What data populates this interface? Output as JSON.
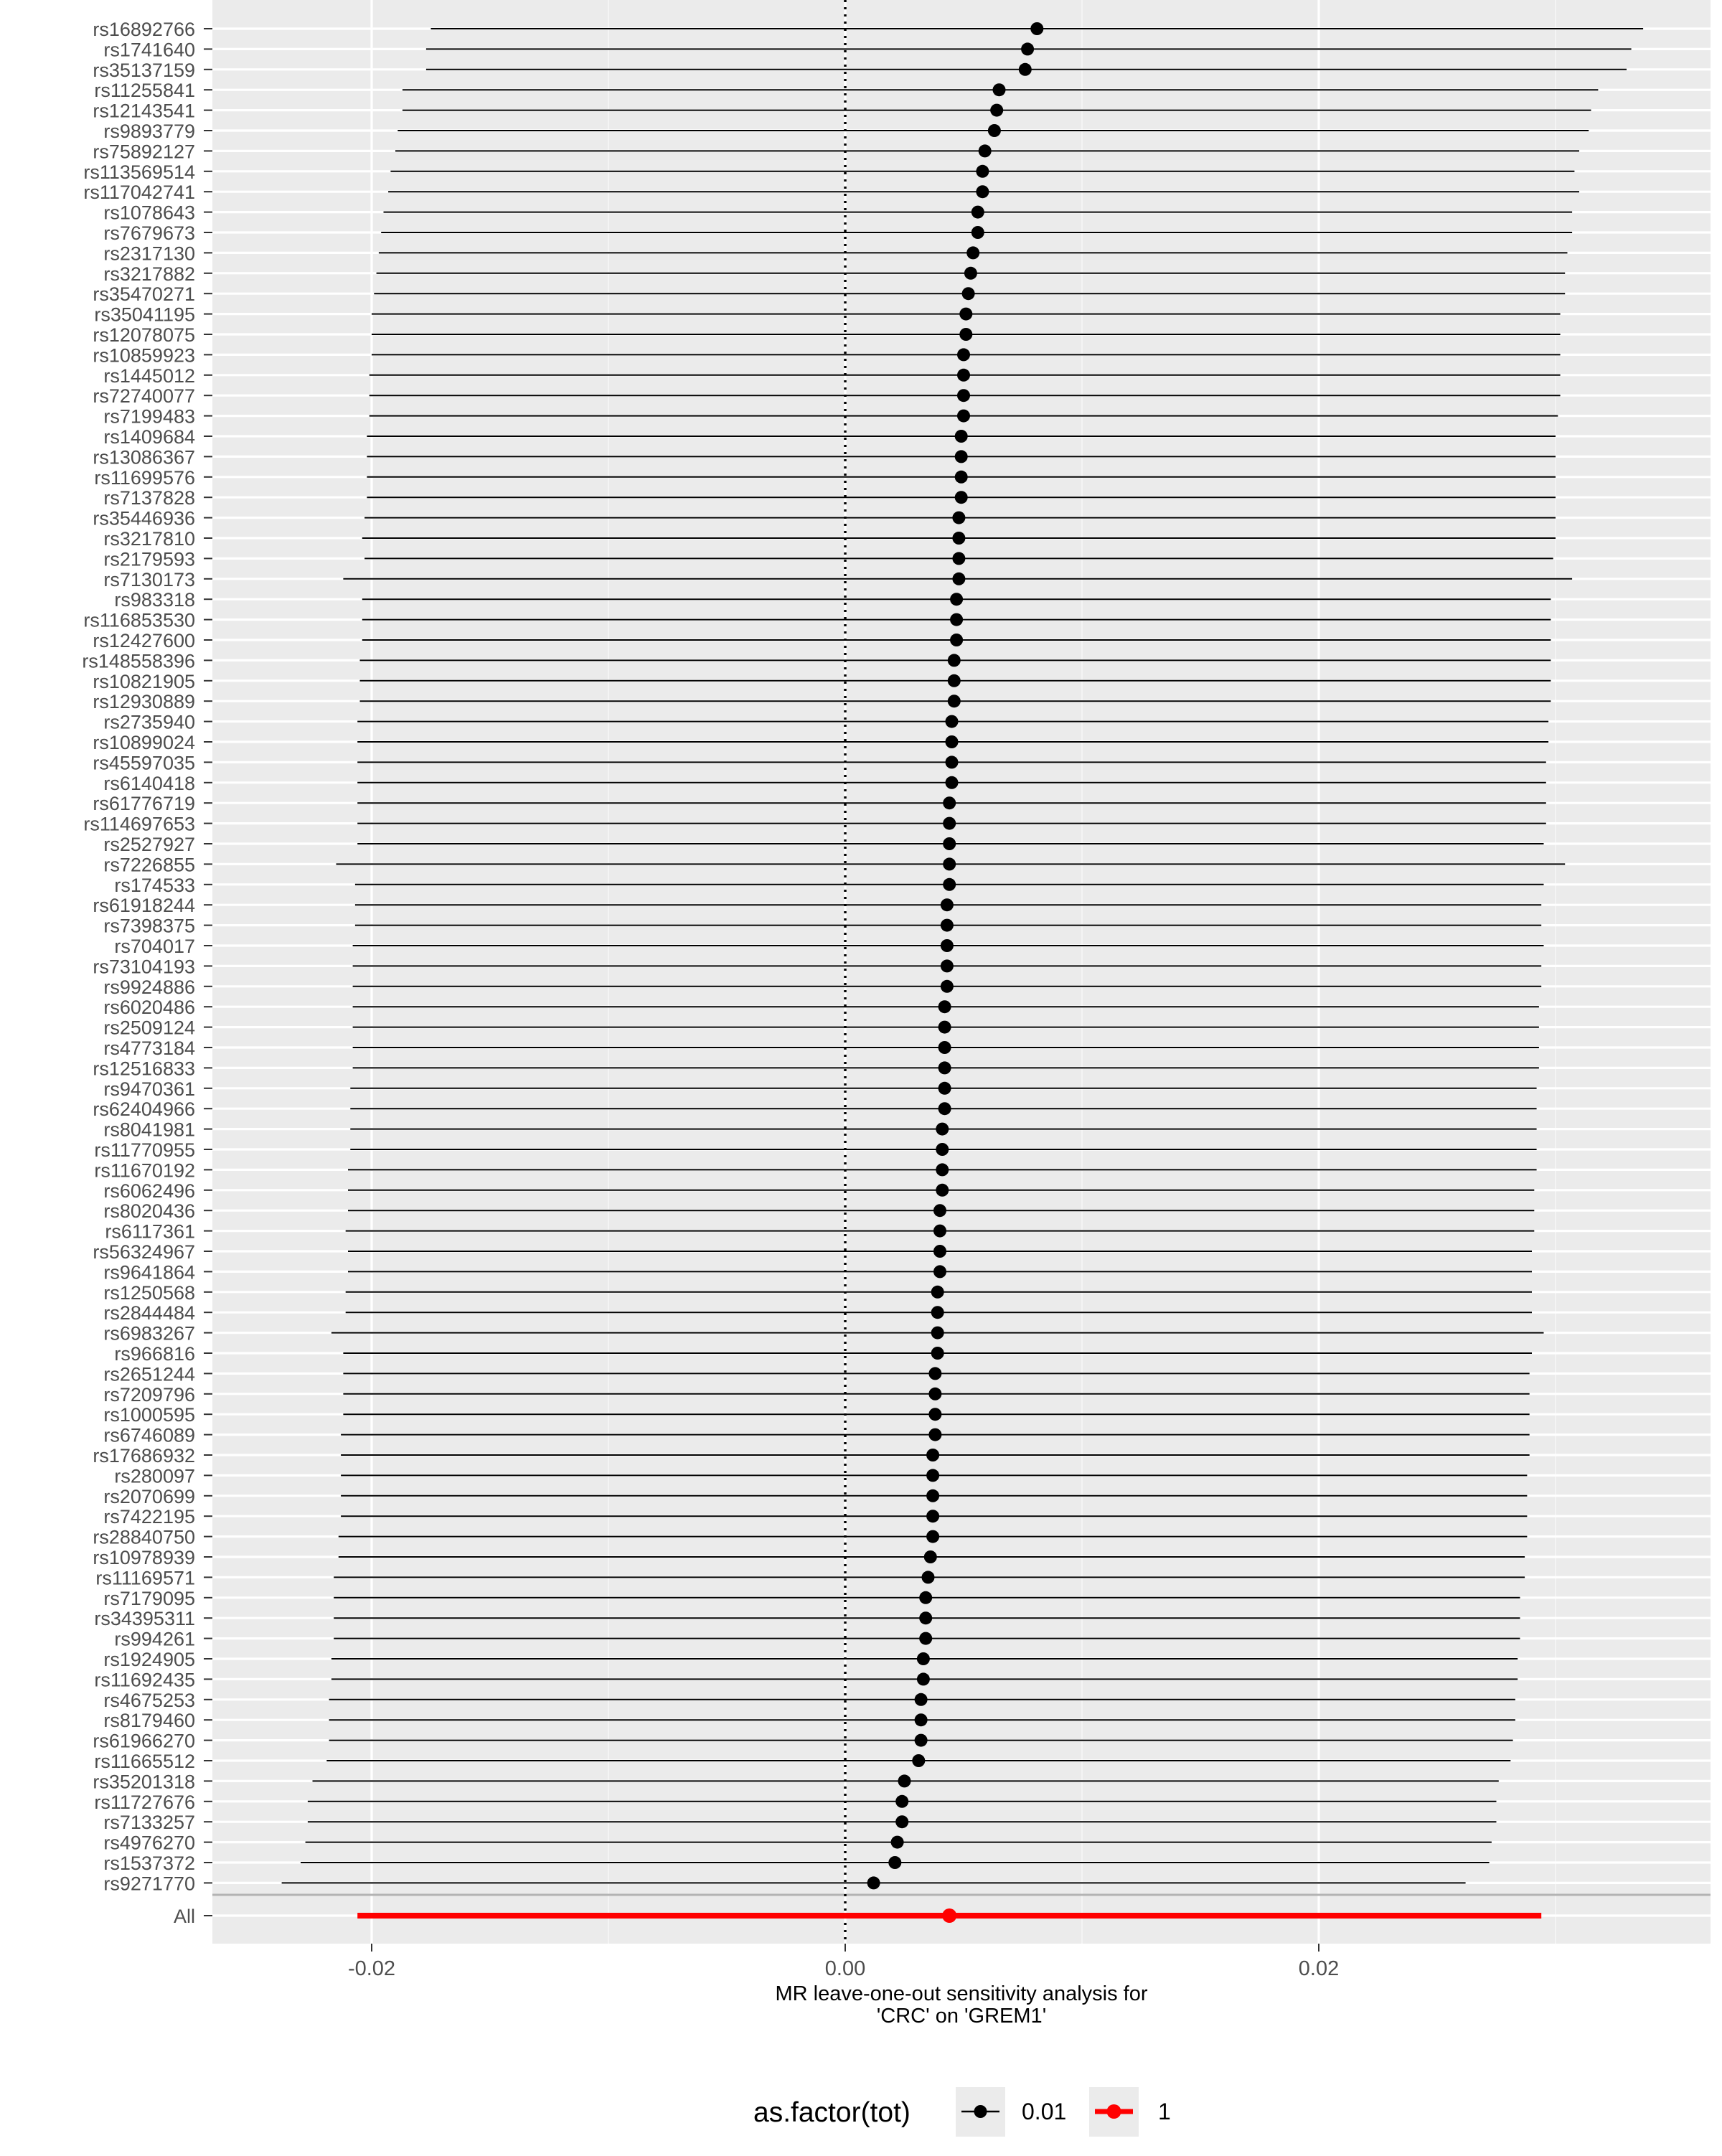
{
  "chart_data": {
    "type": "forest",
    "xlabel_lines": [
      "MR leave-one-out sensitivity analysis for",
      "'CRC' on 'GREM1'"
    ],
    "x_ticks": [
      -0.02,
      0.0,
      0.02
    ],
    "x_tick_labels": [
      "-0.02",
      "0.00",
      "0.02"
    ],
    "xlim": [
      -0.027,
      0.0365
    ],
    "reference_line": 0,
    "grid": true,
    "legend": {
      "position": "bottom",
      "title": "as.factor(tot)",
      "items": [
        {
          "label": "0.01",
          "color": "#000000"
        },
        {
          "label": "1",
          "color": "#ff0000"
        }
      ]
    },
    "snps": [
      {
        "label": "rs16892766",
        "b": 0.0081,
        "lo": -0.0175,
        "hi": 0.0337
      },
      {
        "label": "rs1741640",
        "b": 0.0077,
        "lo": -0.0177,
        "hi": 0.0332
      },
      {
        "label": "rs35137159",
        "b": 0.0076,
        "lo": -0.0177,
        "hi": 0.033
      },
      {
        "label": "rs11255841",
        "b": 0.0065,
        "lo": -0.0187,
        "hi": 0.0318
      },
      {
        "label": "rs12143541",
        "b": 0.0064,
        "lo": -0.0187,
        "hi": 0.0315
      },
      {
        "label": "rs9893779",
        "b": 0.0063,
        "lo": -0.0189,
        "hi": 0.0314
      },
      {
        "label": "rs75892127",
        "b": 0.0059,
        "lo": -0.019,
        "hi": 0.031
      },
      {
        "label": "rs113569514",
        "b": 0.0058,
        "lo": -0.0192,
        "hi": 0.0308
      },
      {
        "label": "rs117042741",
        "b": 0.0058,
        "lo": -0.0193,
        "hi": 0.031
      },
      {
        "label": "rs1078643",
        "b": 0.0056,
        "lo": -0.0195,
        "hi": 0.0307
      },
      {
        "label": "rs7679673",
        "b": 0.0056,
        "lo": -0.0196,
        "hi": 0.0307
      },
      {
        "label": "rs2317130",
        "b": 0.0054,
        "lo": -0.0197,
        "hi": 0.0305
      },
      {
        "label": "rs3217882",
        "b": 0.0053,
        "lo": -0.0198,
        "hi": 0.0304
      },
      {
        "label": "rs35470271",
        "b": 0.0052,
        "lo": -0.0199,
        "hi": 0.0304
      },
      {
        "label": "rs35041195",
        "b": 0.0051,
        "lo": -0.02,
        "hi": 0.0302
      },
      {
        "label": "rs12078075",
        "b": 0.0051,
        "lo": -0.02,
        "hi": 0.0302
      },
      {
        "label": "rs10859923",
        "b": 0.005,
        "lo": -0.02,
        "hi": 0.0302
      },
      {
        "label": "rs1445012",
        "b": 0.005,
        "lo": -0.0201,
        "hi": 0.0302
      },
      {
        "label": "rs72740077",
        "b": 0.005,
        "lo": -0.0201,
        "hi": 0.0302
      },
      {
        "label": "rs7199483",
        "b": 0.005,
        "lo": -0.0201,
        "hi": 0.0301
      },
      {
        "label": "rs1409684",
        "b": 0.0049,
        "lo": -0.0202,
        "hi": 0.03
      },
      {
        "label": "rs13086367",
        "b": 0.0049,
        "lo": -0.0202,
        "hi": 0.03
      },
      {
        "label": "rs11699576",
        "b": 0.0049,
        "lo": -0.0202,
        "hi": 0.03
      },
      {
        "label": "rs7137828",
        "b": 0.0049,
        "lo": -0.0202,
        "hi": 0.03
      },
      {
        "label": "rs35446936",
        "b": 0.0048,
        "lo": -0.0203,
        "hi": 0.03
      },
      {
        "label": "rs3217810",
        "b": 0.0048,
        "lo": -0.0204,
        "hi": 0.03
      },
      {
        "label": "rs2179593",
        "b": 0.0048,
        "lo": -0.0203,
        "hi": 0.0299
      },
      {
        "label": "rs7130173",
        "b": 0.0048,
        "lo": -0.0212,
        "hi": 0.0307
      },
      {
        "label": "rs983318",
        "b": 0.0047,
        "lo": -0.0204,
        "hi": 0.0298
      },
      {
        "label": "rs116853530",
        "b": 0.0047,
        "lo": -0.0204,
        "hi": 0.0298
      },
      {
        "label": "rs12427600",
        "b": 0.0047,
        "lo": -0.0204,
        "hi": 0.0298
      },
      {
        "label": "rs148558396",
        "b": 0.0046,
        "lo": -0.0205,
        "hi": 0.0298
      },
      {
        "label": "rs10821905",
        "b": 0.0046,
        "lo": -0.0205,
        "hi": 0.0298
      },
      {
        "label": "rs12930889",
        "b": 0.0046,
        "lo": -0.0205,
        "hi": 0.0298
      },
      {
        "label": "rs2735940",
        "b": 0.0045,
        "lo": -0.0206,
        "hi": 0.0297
      },
      {
        "label": "rs10899024",
        "b": 0.0045,
        "lo": -0.0206,
        "hi": 0.0297
      },
      {
        "label": "rs45597035",
        "b": 0.0045,
        "lo": -0.0206,
        "hi": 0.0296
      },
      {
        "label": "rs6140418",
        "b": 0.0045,
        "lo": -0.0206,
        "hi": 0.0296
      },
      {
        "label": "rs61776719",
        "b": 0.0044,
        "lo": -0.0206,
        "hi": 0.0296
      },
      {
        "label": "rs114697653",
        "b": 0.0044,
        "lo": -0.0206,
        "hi": 0.0296
      },
      {
        "label": "rs2527927",
        "b": 0.0044,
        "lo": -0.0206,
        "hi": 0.0295
      },
      {
        "label": "rs7226855",
        "b": 0.0044,
        "lo": -0.0215,
        "hi": 0.0304
      },
      {
        "label": "rs174533",
        "b": 0.0044,
        "lo": -0.0207,
        "hi": 0.0295
      },
      {
        "label": "rs61918244",
        "b": 0.0043,
        "lo": -0.0207,
        "hi": 0.0294
      },
      {
        "label": "rs7398375",
        "b": 0.0043,
        "lo": -0.0207,
        "hi": 0.0294
      },
      {
        "label": "rs704017",
        "b": 0.0043,
        "lo": -0.0208,
        "hi": 0.0295
      },
      {
        "label": "rs73104193",
        "b": 0.0043,
        "lo": -0.0208,
        "hi": 0.0294
      },
      {
        "label": "rs9924886",
        "b": 0.0043,
        "lo": -0.0208,
        "hi": 0.0294
      },
      {
        "label": "rs6020486",
        "b": 0.0042,
        "lo": -0.0208,
        "hi": 0.0293
      },
      {
        "label": "rs2509124",
        "b": 0.0042,
        "lo": -0.0208,
        "hi": 0.0293
      },
      {
        "label": "rs4773184",
        "b": 0.0042,
        "lo": -0.0208,
        "hi": 0.0293
      },
      {
        "label": "rs12516833",
        "b": 0.0042,
        "lo": -0.0208,
        "hi": 0.0293
      },
      {
        "label": "rs9470361",
        "b": 0.0042,
        "lo": -0.0209,
        "hi": 0.0292
      },
      {
        "label": "rs62404966",
        "b": 0.0042,
        "lo": -0.0209,
        "hi": 0.0292
      },
      {
        "label": "rs8041981",
        "b": 0.0041,
        "lo": -0.0209,
        "hi": 0.0292
      },
      {
        "label": "rs11770955",
        "b": 0.0041,
        "lo": -0.0209,
        "hi": 0.0292
      },
      {
        "label": "rs11670192",
        "b": 0.0041,
        "lo": -0.021,
        "hi": 0.0292
      },
      {
        "label": "rs6062496",
        "b": 0.0041,
        "lo": -0.021,
        "hi": 0.0291
      },
      {
        "label": "rs8020436",
        "b": 0.004,
        "lo": -0.021,
        "hi": 0.0291
      },
      {
        "label": "rs6117361",
        "b": 0.004,
        "lo": -0.0211,
        "hi": 0.0291
      },
      {
        "label": "rs56324967",
        "b": 0.004,
        "lo": -0.021,
        "hi": 0.029
      },
      {
        "label": "rs9641864",
        "b": 0.004,
        "lo": -0.021,
        "hi": 0.029
      },
      {
        "label": "rs1250568",
        "b": 0.0039,
        "lo": -0.0211,
        "hi": 0.029
      },
      {
        "label": "rs2844484",
        "b": 0.0039,
        "lo": -0.0211,
        "hi": 0.029
      },
      {
        "label": "rs6983267",
        "b": 0.0039,
        "lo": -0.0217,
        "hi": 0.0295
      },
      {
        "label": "rs966816",
        "b": 0.0039,
        "lo": -0.0212,
        "hi": 0.029
      },
      {
        "label": "rs2651244",
        "b": 0.0038,
        "lo": -0.0212,
        "hi": 0.0289
      },
      {
        "label": "rs7209796",
        "b": 0.0038,
        "lo": -0.0212,
        "hi": 0.0289
      },
      {
        "label": "rs1000595",
        "b": 0.0038,
        "lo": -0.0212,
        "hi": 0.0289
      },
      {
        "label": "rs6746089",
        "b": 0.0038,
        "lo": -0.0213,
        "hi": 0.0289
      },
      {
        "label": "rs17686932",
        "b": 0.0037,
        "lo": -0.0213,
        "hi": 0.0289
      },
      {
        "label": "rs280097",
        "b": 0.0037,
        "lo": -0.0213,
        "hi": 0.0288
      },
      {
        "label": "rs2070699",
        "b": 0.0037,
        "lo": -0.0213,
        "hi": 0.0288
      },
      {
        "label": "rs7422195",
        "b": 0.0037,
        "lo": -0.0213,
        "hi": 0.0288
      },
      {
        "label": "rs28840750",
        "b": 0.0037,
        "lo": -0.0214,
        "hi": 0.0288
      },
      {
        "label": "rs10978939",
        "b": 0.0036,
        "lo": -0.0214,
        "hi": 0.0287
      },
      {
        "label": "rs11169571",
        "b": 0.0035,
        "lo": -0.0216,
        "hi": 0.0287
      },
      {
        "label": "rs7179095",
        "b": 0.0034,
        "lo": -0.0216,
        "hi": 0.0285
      },
      {
        "label": "rs34395311",
        "b": 0.0034,
        "lo": -0.0216,
        "hi": 0.0285
      },
      {
        "label": "rs994261",
        "b": 0.0034,
        "lo": -0.0216,
        "hi": 0.0285
      },
      {
        "label": "rs1924905",
        "b": 0.0033,
        "lo": -0.0217,
        "hi": 0.0284
      },
      {
        "label": "rs11692435",
        "b": 0.0033,
        "lo": -0.0217,
        "hi": 0.0284
      },
      {
        "label": "rs4675253",
        "b": 0.0032,
        "lo": -0.0218,
        "hi": 0.0283
      },
      {
        "label": "rs8179460",
        "b": 0.0032,
        "lo": -0.0218,
        "hi": 0.0283
      },
      {
        "label": "rs61966270",
        "b": 0.0032,
        "lo": -0.0218,
        "hi": 0.0282
      },
      {
        "label": "rs11665512",
        "b": 0.0031,
        "lo": -0.0219,
        "hi": 0.0281
      },
      {
        "label": "rs35201318",
        "b": 0.0025,
        "lo": -0.0225,
        "hi": 0.0276
      },
      {
        "label": "rs11727676",
        "b": 0.0024,
        "lo": -0.0227,
        "hi": 0.0275
      },
      {
        "label": "rs7133257",
        "b": 0.0024,
        "lo": -0.0227,
        "hi": 0.0275
      },
      {
        "label": "rs4976270",
        "b": 0.0022,
        "lo": -0.0228,
        "hi": 0.0273
      },
      {
        "label": "rs1537372",
        "b": 0.0021,
        "lo": -0.023,
        "hi": 0.0272
      },
      {
        "label": "rs9271770",
        "b": 0.0012,
        "lo": -0.0238,
        "hi": 0.0262
      }
    ],
    "overall": {
      "label": "All",
      "b": 0.0044,
      "lo": -0.0206,
      "hi": 0.0294
    }
  }
}
